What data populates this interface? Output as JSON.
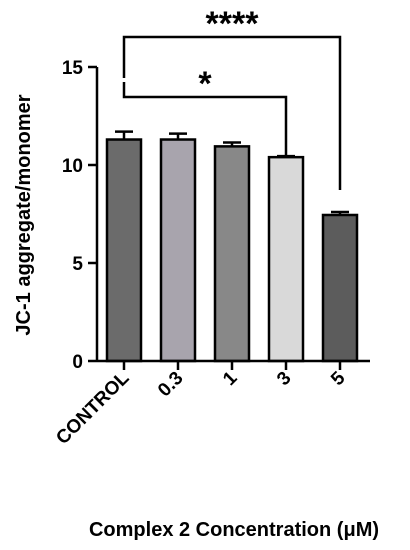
{
  "chart_data": {
    "type": "bar",
    "categories": [
      "CONTROL",
      "0.3",
      "1",
      "3",
      "5"
    ],
    "values": [
      11.3,
      11.3,
      10.95,
      10.4,
      7.45
    ],
    "errors": [
      0.4,
      0.3,
      0.2,
      0.05,
      0.15
    ],
    "bar_colors": [
      "#6b6b6b",
      "#a8a4ad",
      "#888888",
      "#d9d9d9",
      "#5c5c5c"
    ],
    "ylabel": "JC-1 aggregate/monomer",
    "xlabel": "Complex 2 Concentration (μM)",
    "ylim": [
      0,
      15
    ],
    "yticks": [
      0,
      5,
      10,
      15
    ],
    "grid": false,
    "significance": [
      {
        "from": "CONTROL",
        "to": "3",
        "label": "*"
      },
      {
        "from": "CONTROL",
        "to": "5",
        "label": "****"
      }
    ]
  }
}
